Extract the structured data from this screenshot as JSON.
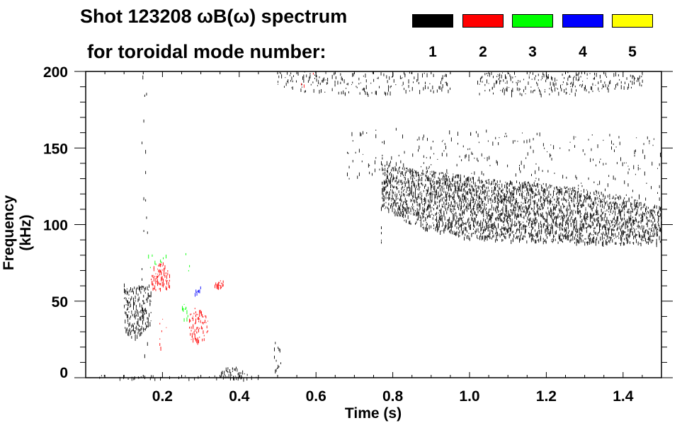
{
  "chart_data": {
    "type": "heatmap",
    "title": "Shot 123208 ωB(ω) spectrum",
    "subtitle": "for toroidal mode number:",
    "xlabel": "Time (s)",
    "ylabel": "Frequency (kHz)",
    "xlim": [
      0,
      1.5
    ],
    "ylim": [
      0,
      200
    ],
    "x_ticks": [
      "0.2",
      "0.4",
      "0.6",
      "0.8",
      "1.0",
      "1.2",
      "1.4"
    ],
    "x_tick_values": [
      0.2,
      0.4,
      0.6,
      0.8,
      1.0,
      1.2,
      1.4
    ],
    "y_ticks": [
      "0",
      "50",
      "100",
      "150",
      "200"
    ],
    "y_tick_values": [
      0,
      50,
      100,
      150,
      200
    ],
    "legend": [
      {
        "label": "1",
        "color": "#000000"
      },
      {
        "label": "2",
        "color": "#ff0000"
      },
      {
        "label": "3",
        "color": "#00ff00"
      },
      {
        "label": "4",
        "color": "#0000ff"
      },
      {
        "label": "5",
        "color": "#ffff00"
      }
    ],
    "legend_placement": "top-right",
    "regions": [
      {
        "mode": 1,
        "t": [
          0.77,
          0.85,
          1.0,
          1.2,
          1.35,
          1.5
        ],
        "f_low": [
          112,
          100,
          91,
          89,
          88,
          88
        ],
        "f_high": [
          140,
          137,
          132,
          127,
          122,
          112
        ],
        "density": 0.9
      },
      {
        "mode": 1,
        "t": [
          0.68,
          0.9,
          1.2,
          1.5
        ],
        "f_low": [
          130,
          132,
          128,
          115
        ],
        "f_high": [
          162,
          165,
          160,
          160
        ],
        "density": 0.25
      },
      {
        "mode": 1,
        "t": [
          0.5,
          0.7,
          0.95
        ],
        "f_low": [
          186,
          185,
          188
        ],
        "f_high": [
          200,
          200,
          200
        ],
        "density": 0.45
      },
      {
        "mode": 1,
        "t": [
          1.02,
          1.25,
          1.45
        ],
        "f_low": [
          186,
          185,
          190
        ],
        "f_high": [
          200,
          200,
          200
        ],
        "density": 0.5
      },
      {
        "mode": 1,
        "t": [
          0.1,
          0.13,
          0.17
        ],
        "f_low": [
          30,
          25,
          35
        ],
        "f_high": [
          58,
          60,
          62
        ],
        "density": 0.8
      },
      {
        "mode": 1,
        "t": [
          0.145,
          0.16
        ],
        "f_low": [
          5,
          5
        ],
        "f_high": [
          200,
          200
        ],
        "density": 0.2
      },
      {
        "mode": 1,
        "t": [
          0.35,
          0.38,
          0.42
        ],
        "f_low": [
          0,
          0,
          0
        ],
        "f_high": [
          5,
          9,
          3
        ],
        "density": 0.8
      },
      {
        "mode": 1,
        "t": [
          0.49,
          0.51
        ],
        "f_low": [
          5,
          5
        ],
        "f_high": [
          30,
          30
        ],
        "density": 0.4
      },
      {
        "mode": 1,
        "t": [
          0.01,
          0.45
        ],
        "f_low": [
          0,
          0
        ],
        "f_high": [
          2,
          2
        ],
        "density": 0.15
      },
      {
        "mode": 2,
        "t": [
          0.17,
          0.2,
          0.22
        ],
        "f_low": [
          58,
          55,
          60
        ],
        "f_high": [
          72,
          76,
          68
        ],
        "density": 0.85
      },
      {
        "mode": 2,
        "t": [
          0.19,
          0.21
        ],
        "f_low": [
          15,
          15
        ],
        "f_high": [
          40,
          40
        ],
        "density": 0.3
      },
      {
        "mode": 2,
        "t": [
          0.27,
          0.3,
          0.32
        ],
        "f_low": [
          25,
          22,
          30
        ],
        "f_high": [
          48,
          45,
          40
        ],
        "density": 0.7
      },
      {
        "mode": 2,
        "t": [
          0.335,
          0.36
        ],
        "f_low": [
          59,
          59
        ],
        "f_high": [
          64,
          64
        ],
        "density": 0.9
      },
      {
        "mode": 2,
        "t": [
          0.56,
          0.6
        ],
        "f_low": [
          190,
          190
        ],
        "f_high": [
          200,
          200
        ],
        "density": 0.2
      },
      {
        "mode": 3,
        "t": [
          0.16,
          0.22
        ],
        "f_low": [
          70,
          70
        ],
        "f_high": [
          82,
          82
        ],
        "density": 0.3
      },
      {
        "mode": 3,
        "t": [
          0.25,
          0.265
        ],
        "f_low": [
          38,
          38
        ],
        "f_high": [
          52,
          52
        ],
        "density": 0.6
      },
      {
        "mode": 3,
        "t": [
          0.26,
          0.275
        ],
        "f_low": [
          62,
          62
        ],
        "f_high": [
          85,
          85
        ],
        "density": 0.2
      },
      {
        "mode": 4,
        "t": [
          0.285,
          0.3
        ],
        "f_low": [
          55,
          55
        ],
        "f_high": [
          60,
          60
        ],
        "density": 0.8
      }
    ]
  }
}
